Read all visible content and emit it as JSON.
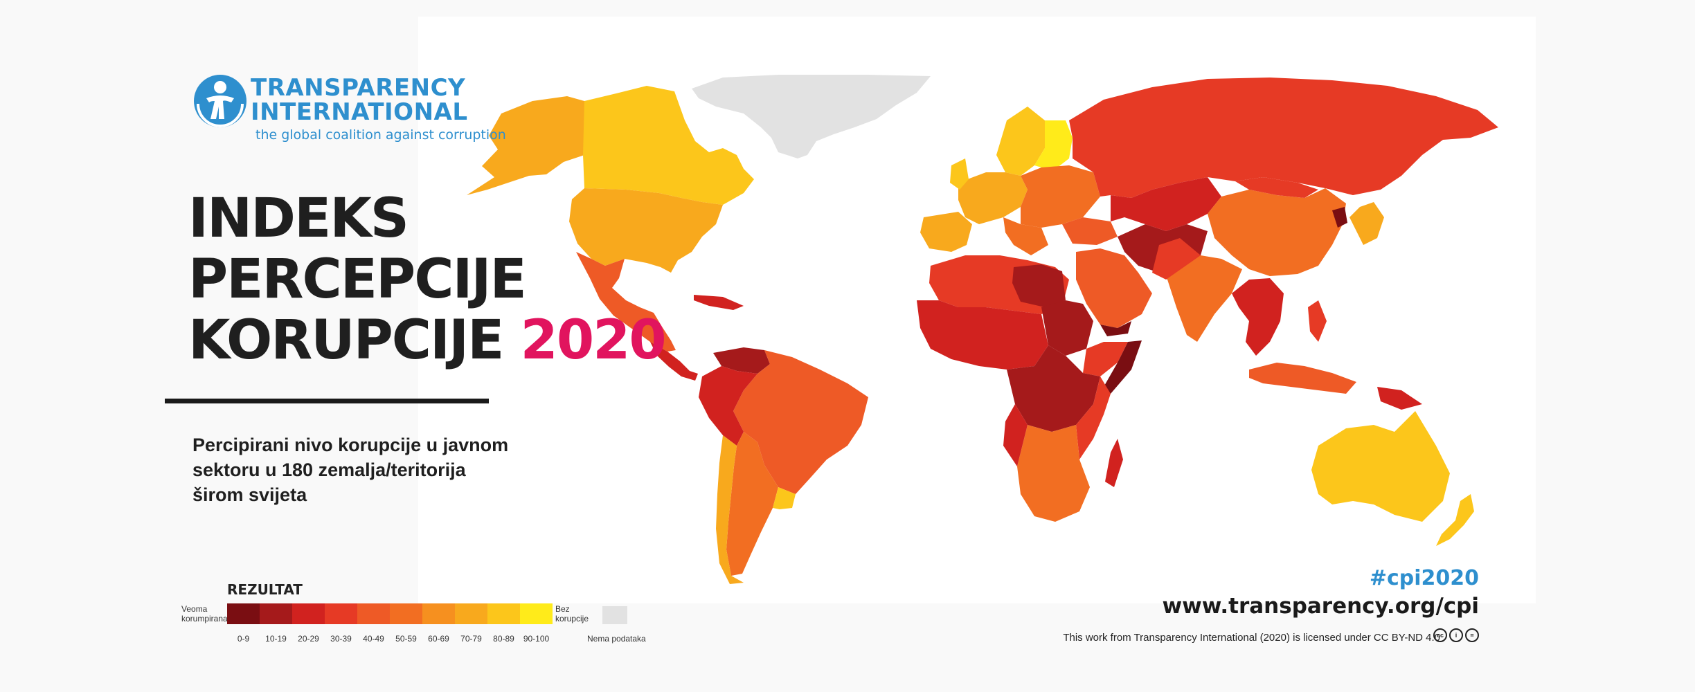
{
  "logo": {
    "line1": "TRANSPARENCY",
    "line2": "INTERNATIONAL",
    "tagline": "the global coalition against corruption"
  },
  "title": {
    "line1": "INDEKS",
    "line2": "PERCEPCIJE",
    "line3_text": "KORUPCIJE",
    "year": "2020"
  },
  "subtitle": "Percipirani nivo korupcije u javnom sektoru u 180 zemalja/teritorija širom svijeta",
  "legend": {
    "title": "REZULTAT",
    "left_label": "Veoma korumpirana",
    "right_label": "Bez korupcije",
    "ranges": [
      "0-9",
      "10-19",
      "20-29",
      "30-39",
      "40-49",
      "50-59",
      "60-69",
      "70-79",
      "80-89",
      "90-100"
    ],
    "colors": [
      "#7a0e12",
      "#a51a1b",
      "#d1221f",
      "#e63a25",
      "#ee5a26",
      "#f26e22",
      "#f6901f",
      "#f8a91d",
      "#fcc61b",
      "#ffeb1a"
    ],
    "nodata_label": "Nema podataka",
    "nodata_color": "#e2e2e2"
  },
  "footer": {
    "hashtag": "#cpi2020",
    "url": "www.transparency.org/cpi",
    "license": "This work from Transparency International (2020) is licensed under CC BY-ND 4.0"
  },
  "colors": {
    "brand_blue": "#2e8fce",
    "accent_pink": "#e1145e"
  }
}
